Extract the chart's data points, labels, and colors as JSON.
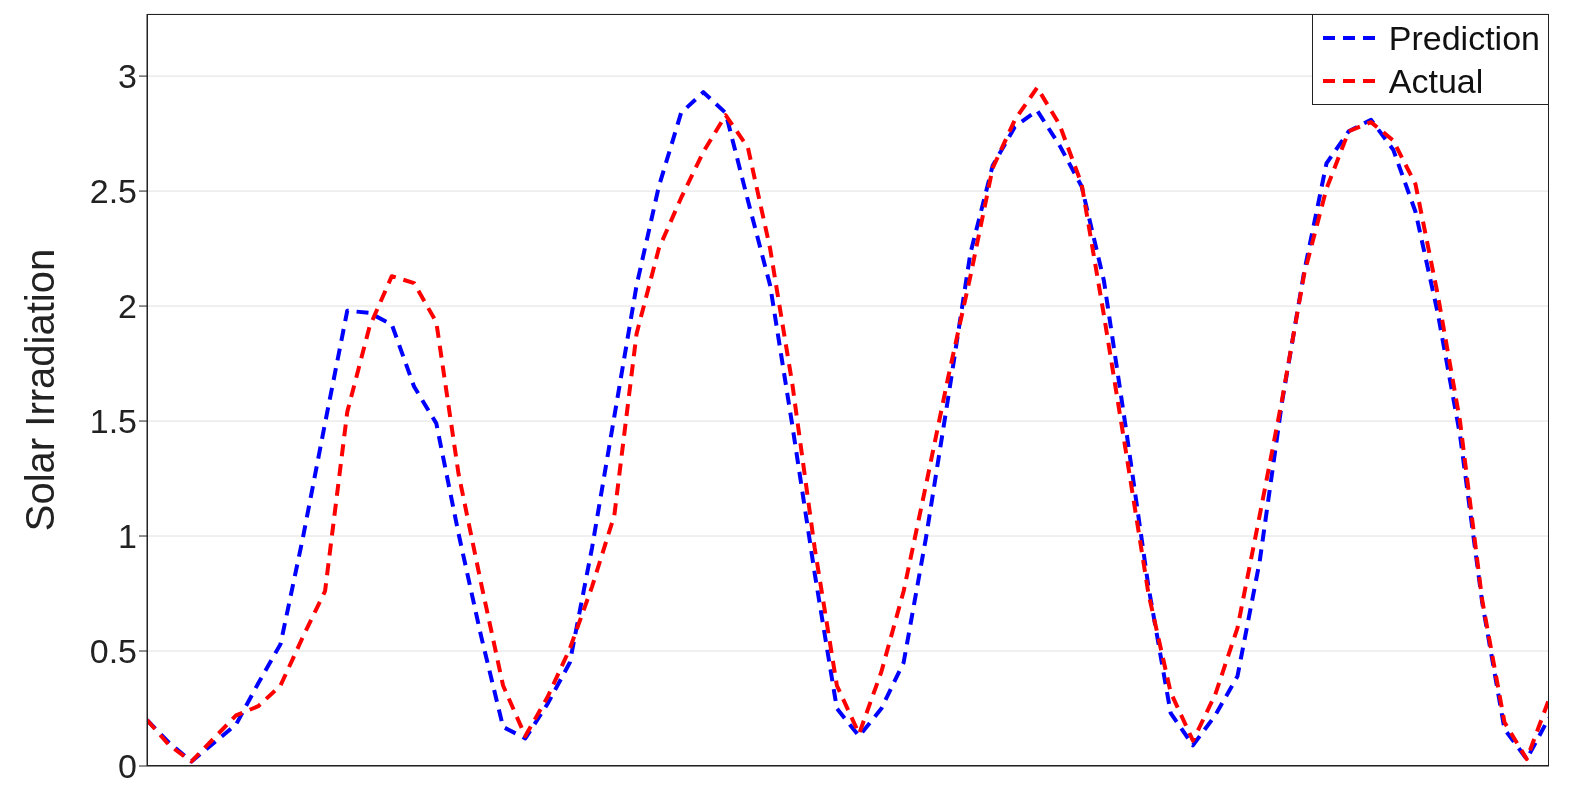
{
  "chart_data": {
    "type": "line",
    "ylabel": "Solar Irradiation",
    "categories": [
      null,
      null,
      null,
      null,
      null,
      null,
      null,
      null,
      null,
      null,
      null,
      null,
      null,
      null,
      null,
      null,
      null,
      null,
      null,
      null,
      null,
      null,
      null,
      null,
      null,
      null,
      null,
      null,
      null,
      null,
      null,
      null,
      null,
      null,
      null,
      null,
      null,
      null,
      null,
      null,
      null,
      null,
      null,
      null,
      null,
      null,
      null,
      null,
      null,
      null,
      null,
      null,
      null,
      null,
      null,
      null,
      null,
      null,
      null,
      null,
      null,
      null,
      null,
      null
    ],
    "ylim": [
      0,
      3.27
    ],
    "yticks": [
      0,
      0.5,
      1,
      1.5,
      2,
      2.5,
      3
    ],
    "grid": "y",
    "legend": "top right",
    "marker": "none",
    "line_style": "dashed",
    "series": [
      {
        "name": "Prediction",
        "color": "#0000ff",
        "values": [
          0.2,
          0.1,
          0.02,
          0.1,
          0.18,
          0.36,
          0.53,
          0.99,
          1.49,
          1.98,
          1.97,
          1.92,
          1.65,
          1.49,
          1.01,
          0.57,
          0.17,
          0.12,
          0.27,
          0.45,
          0.95,
          1.52,
          2.09,
          2.52,
          2.84,
          2.93,
          2.84,
          2.46,
          2.09,
          1.48,
          0.84,
          0.25,
          0.13,
          0.25,
          0.45,
          0.99,
          1.6,
          2.23,
          2.61,
          2.78,
          2.85,
          2.7,
          2.52,
          2.11,
          1.46,
          0.78,
          0.23,
          0.09,
          0.22,
          0.39,
          0.89,
          1.58,
          2.15,
          2.62,
          2.76,
          2.81,
          2.68,
          2.41,
          1.97,
          1.44,
          0.71,
          0.16,
          0.03,
          0.21
        ]
      },
      {
        "name": "Actual",
        "color": "#ff0000",
        "values": [
          0.2,
          0.09,
          0.02,
          0.12,
          0.22,
          0.26,
          0.35,
          0.56,
          0.76,
          1.54,
          1.91,
          2.13,
          2.1,
          1.93,
          1.27,
          0.8,
          0.35,
          0.13,
          0.3,
          0.51,
          0.78,
          1.09,
          1.88,
          2.25,
          2.47,
          2.67,
          2.83,
          2.69,
          2.25,
          1.66,
          0.95,
          0.35,
          0.14,
          0.41,
          0.76,
          1.22,
          1.69,
          2.13,
          2.6,
          2.81,
          2.95,
          2.79,
          2.53,
          1.96,
          1.36,
          0.75,
          0.32,
          0.11,
          0.31,
          0.6,
          1.09,
          1.59,
          2.14,
          2.51,
          2.76,
          2.8,
          2.72,
          2.53,
          2.05,
          1.5,
          0.72,
          0.19,
          0.03,
          0.29
        ]
      }
    ]
  }
}
